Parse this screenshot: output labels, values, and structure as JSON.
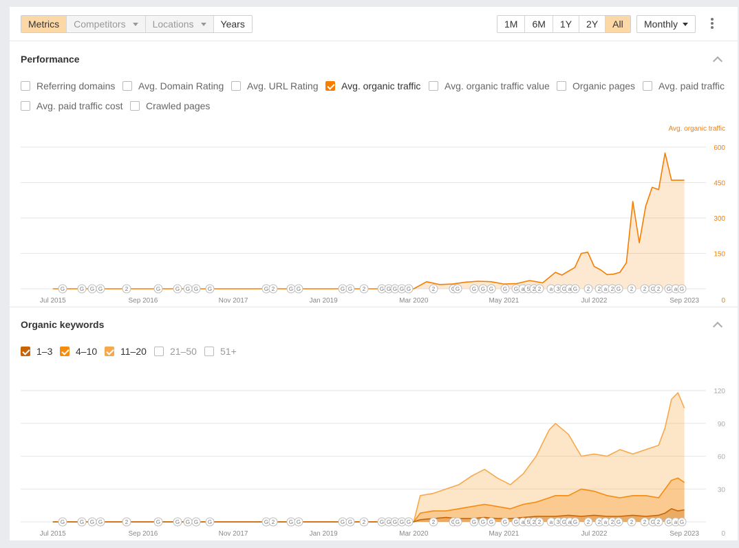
{
  "toolbar": {
    "tabs": [
      {
        "label": "Metrics",
        "active": true
      },
      {
        "label": "Competitors",
        "dropdown": true
      },
      {
        "label": "Locations",
        "dropdown": true
      },
      {
        "label": "Years"
      }
    ],
    "ranges": [
      "1M",
      "6M",
      "1Y",
      "2Y",
      "All"
    ],
    "active_range": "All",
    "interval": "Monthly"
  },
  "performance": {
    "title": "Performance",
    "metrics": [
      {
        "label": "Referring domains",
        "checked": false
      },
      {
        "label": "Avg. Domain Rating",
        "checked": false
      },
      {
        "label": "Avg. URL Rating",
        "checked": false
      },
      {
        "label": "Avg. organic traffic",
        "checked": true
      },
      {
        "label": "Avg. organic traffic value",
        "checked": false
      },
      {
        "label": "Organic pages",
        "checked": false
      },
      {
        "label": "Avg. paid traffic",
        "checked": false
      },
      {
        "label": "Avg. paid traffic cost",
        "checked": false
      },
      {
        "label": "Crawled pages",
        "checked": false
      }
    ],
    "checkbox_color": "#f57e00"
  },
  "keywords": {
    "title": "Organic keywords",
    "positions": [
      {
        "label": "1–3",
        "checked": true,
        "color": "#c86404"
      },
      {
        "label": "4–10",
        "checked": true,
        "color": "#f58b0f"
      },
      {
        "label": "11–20",
        "checked": true,
        "color": "#f7a84a"
      },
      {
        "label": "21–50",
        "checked": false
      },
      {
        "label": "51+",
        "checked": false
      }
    ]
  },
  "chart_data": [
    {
      "type": "area",
      "ylabel": "Avg. organic traffic",
      "series_color": "#f57e00",
      "ylim": [
        0,
        600
      ],
      "yticks": [
        0,
        150,
        300,
        450,
        600
      ],
      "grid": true,
      "x_tick_labels": [
        "Jul 2015",
        "Sep 2016",
        "Nov 2017",
        "Jan 2019",
        "Mar 2020",
        "May 2021",
        "Jul 2022",
        "Sep 2023"
      ],
      "annotations": [
        "G",
        "G",
        "G",
        "G",
        "2",
        "G",
        "G",
        "G",
        "G",
        "G",
        "G",
        "2",
        "G",
        "G",
        "G",
        "G",
        "2",
        "G",
        "G",
        "G",
        "G",
        "G",
        "2",
        "G",
        "G",
        "G",
        "G",
        "G",
        "G",
        "G",
        "a",
        "5",
        "2",
        "2",
        "a",
        "3",
        "G",
        "a",
        "G",
        "2",
        "2",
        "a",
        "2",
        "G",
        "2",
        "2",
        "G",
        "2",
        "G",
        "a",
        "G"
      ],
      "x": [
        "2015-07",
        "2016-09",
        "2017-11",
        "2019-01",
        "2020-03",
        "2020-05",
        "2020-07",
        "2020-09",
        "2020-11",
        "2021-01",
        "2021-03",
        "2021-05",
        "2021-07",
        "2021-09",
        "2021-11",
        "2022-01",
        "2022-02",
        "2022-03",
        "2022-04",
        "2022-05",
        "2022-06",
        "2022-07",
        "2022-08",
        "2022-09",
        "2022-10",
        "2022-11",
        "2022-12",
        "2023-01",
        "2023-02",
        "2023-03",
        "2023-04",
        "2023-05",
        "2023-06",
        "2023-07",
        "2023-08",
        "2023-09"
      ],
      "values": [
        0,
        0,
        0,
        0,
        0,
        30,
        18,
        20,
        28,
        32,
        30,
        20,
        22,
        35,
        25,
        70,
        58,
        75,
        90,
        150,
        155,
        95,
        80,
        60,
        62,
        70,
        110,
        370,
        195,
        350,
        430,
        420,
        575,
        460,
        460,
        460
      ]
    },
    {
      "type": "area",
      "ylim": [
        0,
        120
      ],
      "yticks": [
        0,
        30,
        60,
        90,
        120
      ],
      "grid": true,
      "x_tick_labels": [
        "Jul 2015",
        "Sep 2016",
        "Nov 2017",
        "Jan 2019",
        "Mar 2020",
        "May 2021",
        "Jul 2022",
        "Sep 2023"
      ],
      "annotations": [
        "G",
        "G",
        "G",
        "G",
        "2",
        "G",
        "G",
        "G",
        "G",
        "G",
        "G",
        "2",
        "G",
        "G",
        "G",
        "G",
        "2",
        "G",
        "G",
        "G",
        "G",
        "G",
        "2",
        "G",
        "G",
        "G",
        "G",
        "G",
        "G",
        "G",
        "a",
        "5",
        "2",
        "2",
        "a",
        "3",
        "G",
        "a",
        "G",
        "2",
        "2",
        "a",
        "2",
        "G",
        "2",
        "2",
        "G",
        "2",
        "G",
        "a",
        "G"
      ],
      "x": [
        "2015-07",
        "2016-09",
        "2017-11",
        "2019-01",
        "2020-03",
        "2020-04",
        "2020-06",
        "2020-08",
        "2020-10",
        "2020-12",
        "2021-02",
        "2021-04",
        "2021-06",
        "2021-08",
        "2021-10",
        "2021-12",
        "2022-01",
        "2022-03",
        "2022-05",
        "2022-07",
        "2022-09",
        "2022-11",
        "2023-01",
        "2023-03",
        "2023-05",
        "2023-06",
        "2023-07",
        "2023-08",
        "2023-09"
      ],
      "series": [
        {
          "name": "1–3",
          "values": [
            0,
            0,
            0,
            0,
            0,
            2,
            3,
            4,
            3,
            3,
            4,
            3,
            3,
            4,
            5,
            5,
            5,
            6,
            5,
            6,
            5,
            5,
            6,
            5,
            6,
            8,
            12,
            10,
            11
          ]
        },
        {
          "name": "4–10",
          "values": [
            0,
            0,
            0,
            0,
            0,
            8,
            10,
            10,
            12,
            14,
            16,
            14,
            12,
            16,
            18,
            22,
            24,
            24,
            30,
            28,
            24,
            22,
            24,
            24,
            22,
            30,
            38,
            40,
            36
          ]
        },
        {
          "name": "11–20",
          "values": [
            0,
            0,
            0,
            0,
            0,
            24,
            26,
            30,
            34,
            42,
            48,
            40,
            34,
            44,
            60,
            84,
            90,
            80,
            60,
            62,
            60,
            66,
            62,
            66,
            70,
            86,
            112,
            118,
            104
          ]
        }
      ]
    }
  ]
}
